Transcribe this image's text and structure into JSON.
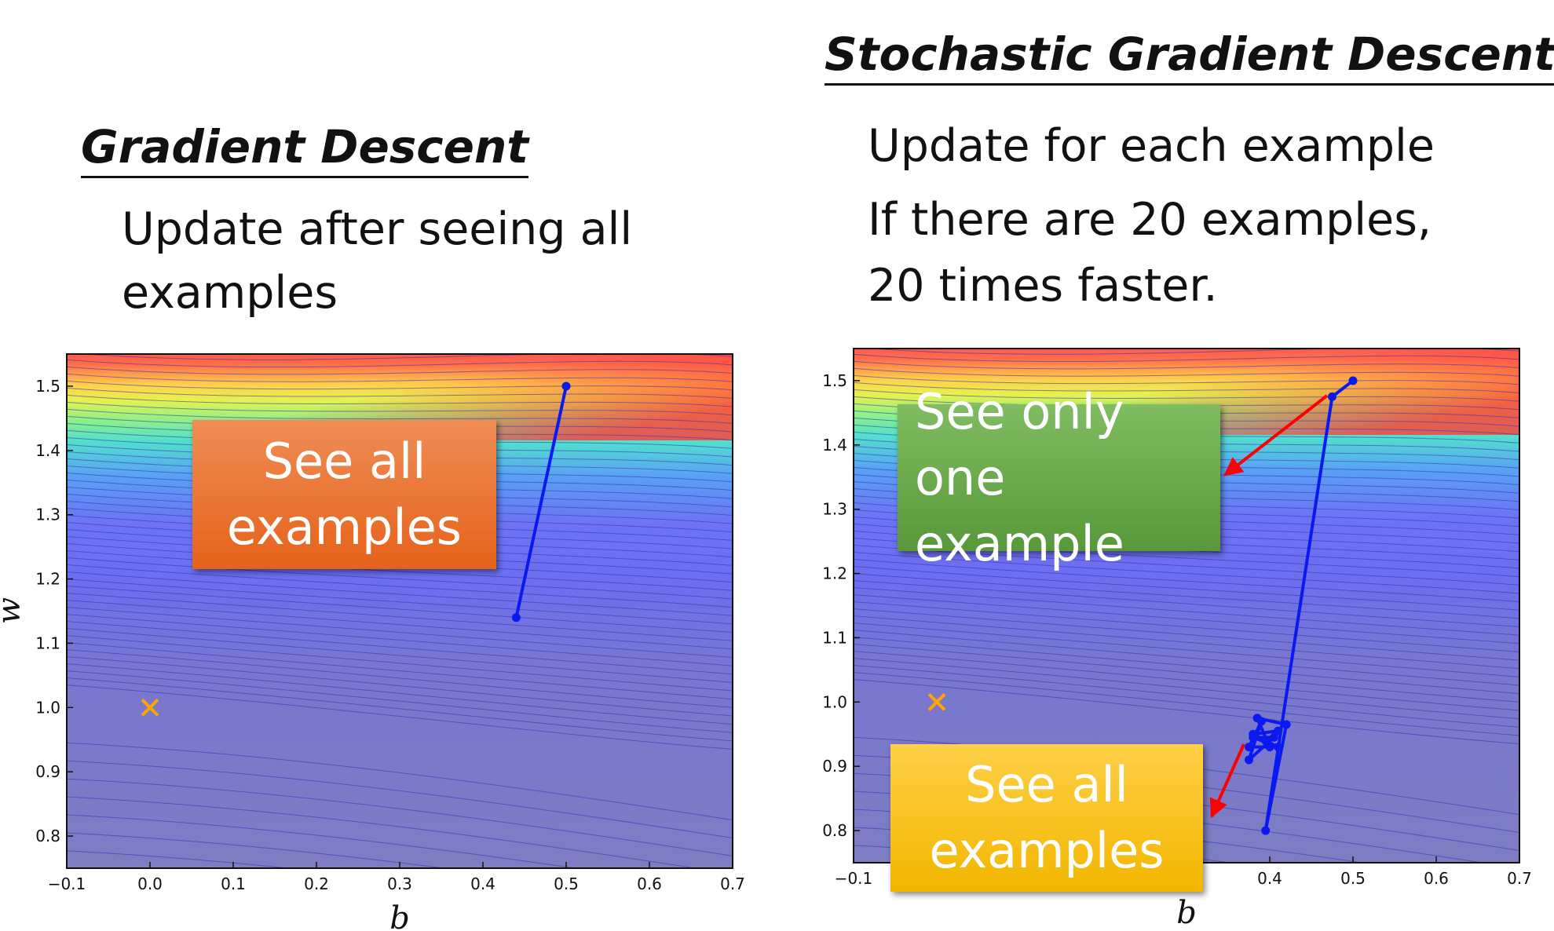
{
  "gradient_descent": {
    "title": "Gradient Descent",
    "description": [
      "Update after seeing all",
      "examples"
    ],
    "callout": [
      "See all",
      "examples"
    ],
    "plot": {
      "xlabel": "b",
      "ylabel": "w",
      "xlim": [
        -0.1,
        0.7
      ],
      "ylim": [
        0.75,
        1.55
      ],
      "xticks": [
        "−0.1",
        "0.0",
        "0.1",
        "0.2",
        "0.3",
        "0.4",
        "0.5",
        "0.6",
        "0.7"
      ],
      "yticks": [
        "0.8",
        "0.9",
        "1.0",
        "1.1",
        "1.2",
        "1.3",
        "1.4",
        "1.5"
      ],
      "optimum": {
        "b": 0.0,
        "w": 1.0
      },
      "path": [
        [
          0.5,
          1.5
        ],
        [
          0.44,
          1.14
        ]
      ]
    }
  },
  "stochastic_gradient_descent": {
    "title": "Stochastic Gradient Descent",
    "description": [
      "Update for each example",
      "If there are 20 examples,",
      "20 times faster."
    ],
    "callout_one": [
      "See only one",
      "example"
    ],
    "callout_all": [
      "See all",
      "examples"
    ],
    "plot": {
      "xlabel": "b",
      "xlim": [
        -0.1,
        0.7
      ],
      "ylim": [
        0.75,
        1.55
      ],
      "xticks": [
        "−0.1",
        "0.4",
        "0.5",
        "0.6",
        "0.7"
      ],
      "yticks": [
        "0.8",
        "0.9",
        "1.0",
        "1.1",
        "1.2",
        "1.3",
        "1.4",
        "1.5"
      ],
      "optimum": {
        "b": 0.0,
        "w": 1.0
      },
      "path": [
        [
          0.5,
          1.5
        ],
        [
          0.475,
          1.475
        ],
        [
          0.395,
          0.8
        ],
        [
          0.42,
          0.965
        ],
        [
          0.385,
          0.975
        ],
        [
          0.4,
          0.93
        ],
        [
          0.375,
          0.93
        ],
        [
          0.39,
          0.97
        ],
        [
          0.375,
          0.91
        ],
        [
          0.405,
          0.945
        ],
        [
          0.38,
          0.945
        ],
        [
          0.41,
          0.93
        ],
        [
          0.395,
          0.94
        ],
        [
          0.38,
          0.95
        ],
        [
          0.41,
          0.955
        ]
      ]
    }
  },
  "colors": {
    "path": "#0a19f0",
    "optimum": "#ffa500",
    "arrow": "#ff0000"
  }
}
